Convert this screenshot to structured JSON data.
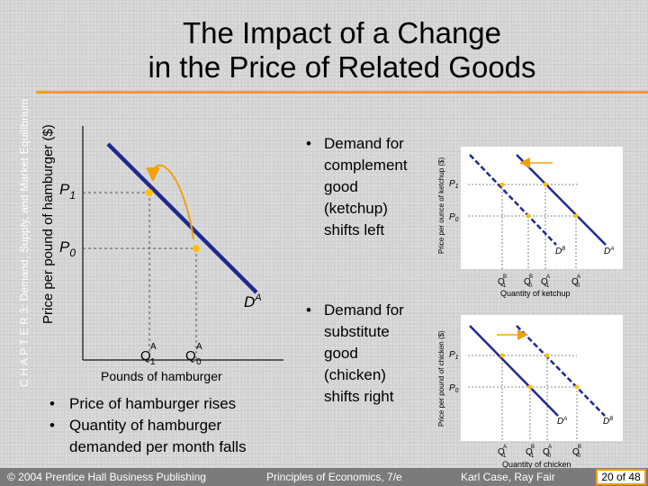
{
  "colors": {
    "accent": "#f0a010",
    "curve": "#1f2a8f",
    "dot": "#ffc000"
  },
  "chapter_label": "C H A P T E R 3: Demand, Supply, and Market Equilibrium",
  "title": {
    "line1": "The Impact of a Change",
    "line2": "in the Price of Related Goods"
  },
  "main_graph": {
    "y_axis_label": "Price per pound of hamburger ($)",
    "x_axis_label": "Pounds of hamburger",
    "p1": "P",
    "p1_sub": "1",
    "p0": "P",
    "p0_sub": "0",
    "q1": "Q",
    "q1_sup": "A",
    "q1_sub": "1",
    "q0": "Q",
    "q0_sup": "A",
    "q0_sub": "0",
    "curve": "D",
    "curve_sup": "A"
  },
  "bullets_right": [
    {
      "lines": [
        "Demand for",
        "complement",
        "good",
        "(ketchup)",
        "shifts left"
      ]
    },
    {
      "lines": [
        "Demand for",
        "substitute",
        "good",
        "(chicken)",
        "shifts right"
      ]
    }
  ],
  "bullets_bottom": [
    {
      "lines": [
        "Price of hamburger rises"
      ]
    },
    {
      "lines": [
        "Quantity of hamburger",
        "demanded per month falls"
      ]
    }
  ],
  "ketchup_graph": {
    "y_axis_label": "Price per ounce of ketchup ($)",
    "x_axis_label": "Quantity of ketchup",
    "p1": "P",
    "p1_sub": "1",
    "p0": "P",
    "p0_sub": "0",
    "q_labels": [
      {
        "base": "Q",
        "sup": "B",
        "sub": "1"
      },
      {
        "base": "Q",
        "sup": "B",
        "sub": "0"
      },
      {
        "base": "Q",
        "sup": "A",
        "sub": "1"
      },
      {
        "base": "Q",
        "sup": "A",
        "sub": "0"
      }
    ],
    "curve_b": {
      "base": "D",
      "sup": "B"
    },
    "curve_a": {
      "base": "D",
      "sup": "A"
    }
  },
  "chicken_graph": {
    "y_axis_label": "Price per pound of chicken ($)",
    "x_axis_label": "Quantity of chicken",
    "p1": "P",
    "p1_sub": "1",
    "p0": "P",
    "p0_sub": "0",
    "q_labels": [
      {
        "base": "Q",
        "sup": "A",
        "sub": "1"
      },
      {
        "base": "Q",
        "sup": "B",
        "sub": "1"
      },
      {
        "base": "Q",
        "sup": "A",
        "sub": "0"
      },
      {
        "base": "Q",
        "sup": "B",
        "sub": "0"
      }
    ],
    "curve_a": {
      "base": "D",
      "sup": "A"
    },
    "curve_b": {
      "base": "D",
      "sup": "B"
    }
  },
  "footer": {
    "left": "© 2004 Prentice Hall Business Publishing",
    "center": "Principles of Economics, 7/e",
    "right": "Karl Case, Ray Fair",
    "page": "20 of 48"
  }
}
